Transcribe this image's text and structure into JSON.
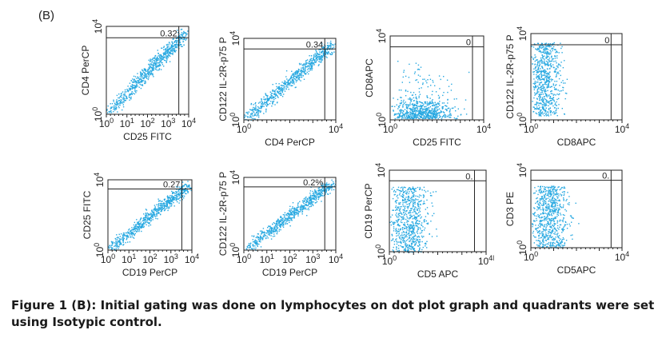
{
  "panel_label": "(B)",
  "plots": [
    {
      "y_label": "CD4 PerCP",
      "x_label": "CD25 FITC",
      "quadrant_value": "0.32",
      "x_ticks": [
        {
          "base": "10",
          "exp": "0"
        },
        {
          "base": "10",
          "exp": "1"
        },
        {
          "base": "10",
          "exp": "2"
        },
        {
          "base": "10",
          "exp": "3"
        },
        {
          "base": "10",
          "exp": "4"
        }
      ],
      "y_ticks": [
        {
          "base": "10",
          "exp": "0"
        },
        {
          "base": "10",
          "exp": "4"
        }
      ]
    },
    {
      "y_label": "CD122 IL-2R-p75 P",
      "x_label": "CD4 PerCP",
      "quadrant_value": "0.34",
      "x_ticks": [
        {
          "base": "10",
          "exp": "0"
        },
        {
          "base": "10",
          "exp": "4"
        }
      ],
      "y_ticks": [
        {
          "base": "10",
          "exp": "0"
        },
        {
          "base": "10",
          "exp": "4"
        }
      ]
    },
    {
      "y_label": "CD8APC",
      "x_label": "CD25 FITC",
      "quadrant_value": "0",
      "x_ticks": [
        {
          "base": "10",
          "exp": "0"
        },
        {
          "base": "10",
          "exp": "4"
        }
      ],
      "y_ticks": [
        {
          "base": "10",
          "exp": "0"
        },
        {
          "base": "10",
          "exp": "4"
        }
      ]
    },
    {
      "y_label": "CD122 IL-2R-p75 P",
      "x_label": "CD8APC",
      "quadrant_value": "0",
      "x_ticks": [
        {
          "base": "10",
          "exp": "0"
        },
        {
          "base": "10",
          "exp": "4"
        }
      ],
      "y_ticks": [
        {
          "base": "10",
          "exp": "0"
        },
        {
          "base": "10",
          "exp": "4"
        }
      ]
    },
    {
      "y_label": "CD25 FITC",
      "x_label": "CD19 PerCP",
      "quadrant_value": "0.27",
      "x_ticks": [
        {
          "base": "10",
          "exp": "0"
        },
        {
          "base": "10",
          "exp": "1"
        },
        {
          "base": "10",
          "exp": "2"
        },
        {
          "base": "10",
          "exp": "3"
        },
        {
          "base": "10",
          "exp": "4"
        }
      ],
      "y_ticks": [
        {
          "base": "10",
          "exp": "0"
        },
        {
          "base": "10",
          "exp": "4"
        }
      ]
    },
    {
      "y_label": "CD122 IL-2R-p75 P",
      "x_label": "CD19 PerCP",
      "quadrant_value": "0.2%",
      "x_ticks": [
        {
          "base": "10",
          "exp": "0"
        },
        {
          "base": "10",
          "exp": "1"
        },
        {
          "base": "10",
          "exp": "2"
        },
        {
          "base": "10",
          "exp": "3"
        },
        {
          "base": "10",
          "exp": "4"
        }
      ],
      "y_ticks": [
        {
          "base": "10",
          "exp": "0"
        },
        {
          "base": "10",
          "exp": "4"
        }
      ]
    },
    {
      "y_label": "CD19 PerCP",
      "x_label": "CD5 APC",
      "quadrant_value": "0.",
      "x_ticks": [
        {
          "base": "10",
          "exp": "0"
        },
        {
          "base": "10",
          "exp": "4l"
        }
      ],
      "y_ticks": [
        {
          "base": "10",
          "exp": "0"
        },
        {
          "base": "10",
          "exp": "4"
        }
      ]
    },
    {
      "y_label": "CD3 PE",
      "x_label": "CD5APC",
      "quadrant_value": "0.",
      "x_ticks": [
        {
          "base": "10",
          "exp": "0"
        },
        {
          "base": "10",
          "exp": "4"
        }
      ],
      "y_ticks": [
        {
          "base": "10",
          "exp": "0"
        },
        {
          "base": "10",
          "exp": "4"
        }
      ]
    }
  ],
  "caption": "Figure 1 (B): Initial gating was done on lymphocytes on dot plot graph and quadrants were set using Isotypic control."
}
